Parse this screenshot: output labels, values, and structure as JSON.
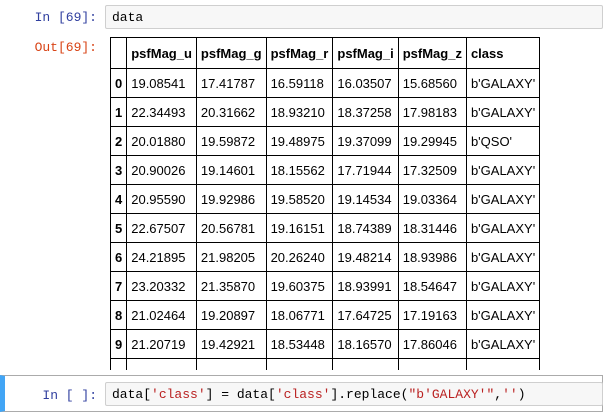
{
  "cell_in": {
    "prompt": "In [69]:",
    "code": "data"
  },
  "output": {
    "prompt": "Out[69]:",
    "table": {
      "columns": [
        "",
        "psfMag_u",
        "psfMag_g",
        "psfMag_r",
        "psfMag_i",
        "psfMag_z",
        "class"
      ],
      "rows": [
        [
          "0",
          "19.08541",
          "17.41787",
          "16.59118",
          "16.03507",
          "15.68560",
          "b'GALAXY'"
        ],
        [
          "1",
          "22.34493",
          "20.31662",
          "18.93210",
          "18.37258",
          "17.98183",
          "b'GALAXY'"
        ],
        [
          "2",
          "20.01880",
          "19.59872",
          "19.48975",
          "19.37099",
          "19.29945",
          "b'QSO'"
        ],
        [
          "3",
          "20.90026",
          "19.14601",
          "18.15562",
          "17.71944",
          "17.32509",
          "b'GALAXY'"
        ],
        [
          "4",
          "20.95590",
          "19.92986",
          "19.58520",
          "19.14534",
          "19.03364",
          "b'GALAXY'"
        ],
        [
          "5",
          "22.67507",
          "20.56781",
          "19.16151",
          "18.74389",
          "18.31446",
          "b'GALAXY'"
        ],
        [
          "6",
          "24.21895",
          "21.98205",
          "20.26240",
          "19.48214",
          "18.93986",
          "b'GALAXY'"
        ],
        [
          "7",
          "23.20332",
          "21.35870",
          "19.60375",
          "18.93991",
          "18.54647",
          "b'GALAXY'"
        ],
        [
          "8",
          "21.02464",
          "19.20897",
          "18.06771",
          "17.64725",
          "17.19163",
          "b'GALAXY'"
        ],
        [
          "9",
          "21.20719",
          "19.42921",
          "18.53448",
          "18.16570",
          "17.86046",
          "b'GALAXY'"
        ]
      ]
    }
  },
  "cell_next": {
    "prompt": "In [ ]:",
    "code_tokens": [
      "data[",
      "'class'",
      "] = data[",
      "'class'",
      "].replace(",
      "\"b'GALAXY'\"",
      ",",
      "''",
      ")"
    ]
  }
}
